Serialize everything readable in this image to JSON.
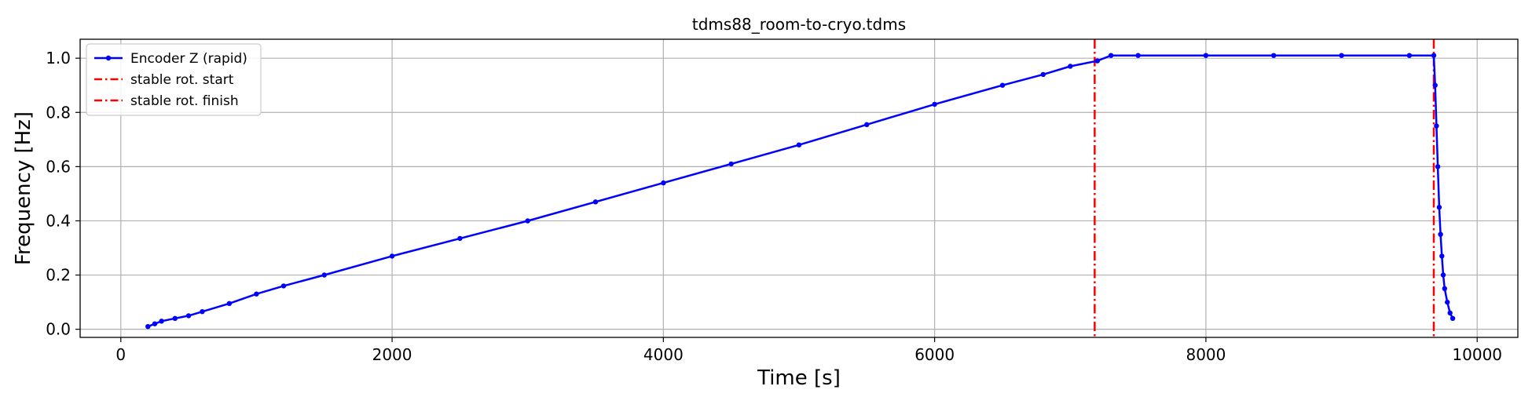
{
  "chart_data": {
    "type": "line",
    "title": "tdms88_room-to-cryo.tdms",
    "xlabel": "Time [s]",
    "ylabel": "Frequency [Hz]",
    "xlim": [
      -300,
      10300
    ],
    "ylim": [
      -0.03,
      1.07
    ],
    "xticks": [
      0,
      2000,
      4000,
      6000,
      8000,
      10000
    ],
    "yticks": [
      0.0,
      0.2,
      0.4,
      0.6,
      0.8,
      1.0
    ],
    "xtick_labels": [
      "0",
      "2000",
      "4000",
      "6000",
      "8000",
      "10000"
    ],
    "ytick_labels": [
      "0.0",
      "0.2",
      "0.4",
      "0.6",
      "0.8",
      "1.0"
    ],
    "grid": true,
    "legend_position": "upper left",
    "series": [
      {
        "name": "Encoder Z (rapid)",
        "color": "#0000ff",
        "marker": "dot",
        "x": [
          200,
          250,
          300,
          400,
          500,
          600,
          800,
          1000,
          1200,
          1500,
          2000,
          2500,
          3000,
          3500,
          4000,
          4500,
          5000,
          5500,
          6000,
          6500,
          6800,
          7000,
          7200,
          7300,
          7500,
          8000,
          8500,
          9000,
          9500,
          9680,
          9690,
          9700,
          9710,
          9720,
          9730,
          9740,
          9750,
          9760,
          9780,
          9800,
          9820
        ],
        "y": [
          0.01,
          0.02,
          0.03,
          0.04,
          0.05,
          0.065,
          0.095,
          0.13,
          0.16,
          0.2,
          0.27,
          0.335,
          0.4,
          0.47,
          0.54,
          0.61,
          0.68,
          0.755,
          0.83,
          0.9,
          0.94,
          0.97,
          0.99,
          1.01,
          1.01,
          1.01,
          1.01,
          1.01,
          1.01,
          1.01,
          0.9,
          0.75,
          0.6,
          0.45,
          0.35,
          0.27,
          0.2,
          0.15,
          0.1,
          0.06,
          0.04
        ]
      },
      {
        "name": "stable rot. start",
        "color": "#ff0000",
        "style": "dashdot",
        "vline_x": 7180
      },
      {
        "name": "stable rot. finish",
        "color": "#ff0000",
        "style": "dashdot",
        "vline_x": 9680
      }
    ]
  }
}
